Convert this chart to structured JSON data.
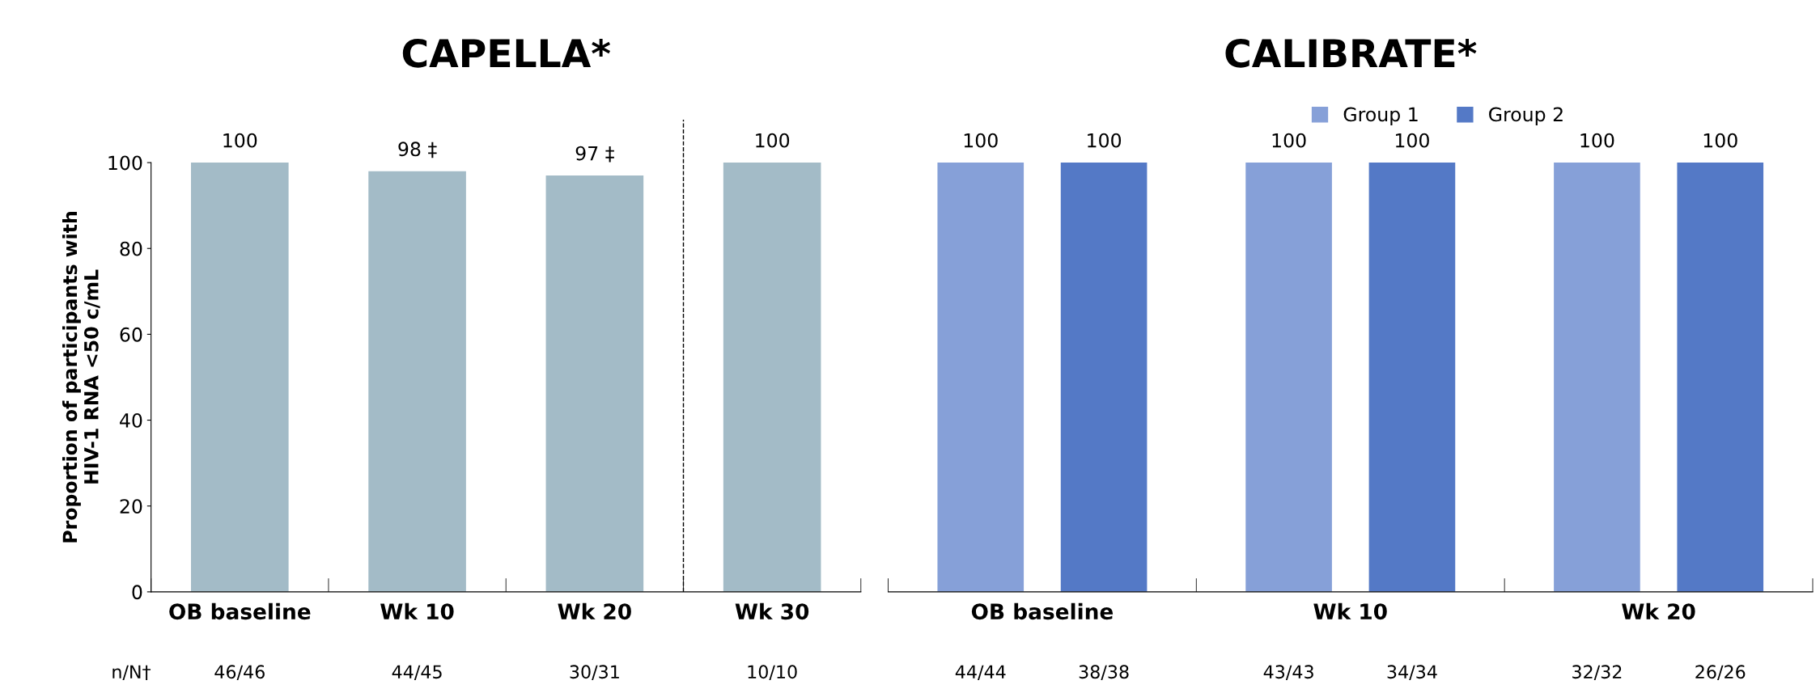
{
  "chart_data": [
    {
      "type": "bar",
      "title": "CAPELLA*",
      "ylabel": "Proportion of participants with\nHIV-1 RNA <50 c/mL",
      "categories": [
        "OB baseline",
        "Wk 10",
        "Wk 20",
        "Wk 30"
      ],
      "values": [
        100,
        98,
        97,
        100
      ],
      "value_labels": [
        "100",
        "98 ‡",
        "97 ‡",
        "100"
      ],
      "color": "#a3bbc7",
      "ylim": [
        0,
        100
      ],
      "yticks": [
        0,
        20,
        40,
        60,
        80,
        100
      ],
      "grid": false,
      "legend": false,
      "annotations": [
        "n/N†",
        "46/46",
        "44/45",
        "30/31",
        "10/10"
      ]
    },
    {
      "type": "bar",
      "title": "CALIBRATE*",
      "categories": [
        "OB baseline",
        "Wk 10",
        "Wk 20"
      ],
      "series": [
        {
          "name": "Group 1",
          "color": "#86a0d8",
          "values": [
            100,
            100,
            100
          ]
        },
        {
          "name": "Group 2",
          "color": "#5479c6",
          "values": [
            100,
            100,
            100
          ]
        }
      ],
      "data_labels": true,
      "ylim": [
        0,
        100
      ],
      "yticks": [
        0,
        20,
        40,
        60,
        80,
        100
      ],
      "tick_labels": "x",
      "grid": false,
      "legend": "top right",
      "annotations": [
        "44/44",
        "38/38",
        "43/43",
        "34/34",
        "32/32",
        "26/26"
      ]
    }
  ]
}
